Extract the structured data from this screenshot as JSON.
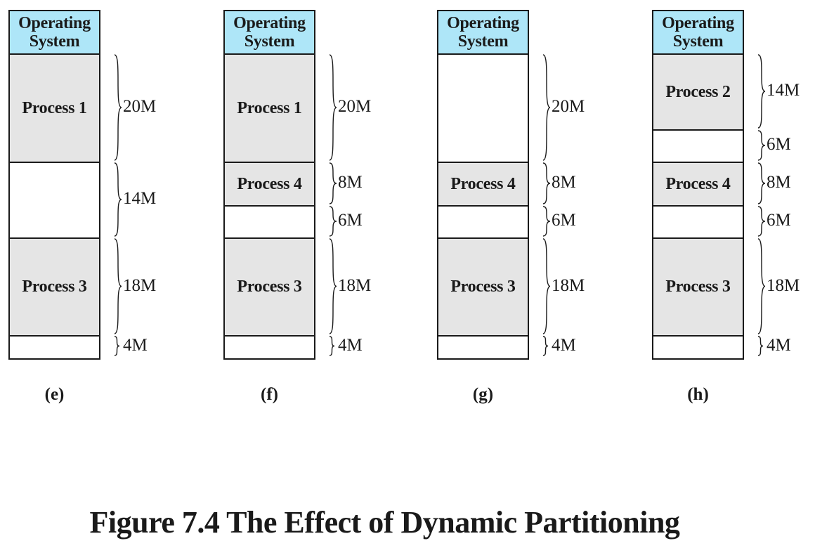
{
  "title": "Figure 7.4  The Effect of Dynamic Partitioning",
  "diagrams": [
    {
      "caption": "(e)",
      "os_label": "Operating System",
      "segments": [
        {
          "label": "Process 1",
          "kind": "process",
          "size": "20M"
        },
        {
          "label": "",
          "kind": "free",
          "size": "14M"
        },
        {
          "label": "Process 3",
          "kind": "process",
          "size": "18M"
        },
        {
          "label": "",
          "kind": "free",
          "size": "4M"
        }
      ]
    },
    {
      "caption": "(f)",
      "os_label": "Operating System",
      "segments": [
        {
          "label": "Process 1",
          "kind": "process",
          "size": "20M"
        },
        {
          "label": "Process 4",
          "kind": "process",
          "size": "8M"
        },
        {
          "label": "",
          "kind": "free",
          "size": "6M"
        },
        {
          "label": "Process 3",
          "kind": "process",
          "size": "18M"
        },
        {
          "label": "",
          "kind": "free",
          "size": "4M"
        }
      ]
    },
    {
      "caption": "(g)",
      "os_label": "Operating System",
      "segments": [
        {
          "label": "",
          "kind": "free",
          "size": "20M"
        },
        {
          "label": "Process 4",
          "kind": "process",
          "size": "8M"
        },
        {
          "label": "",
          "kind": "free",
          "size": "6M"
        },
        {
          "label": "Process 3",
          "kind": "process",
          "size": "18M"
        },
        {
          "label": "",
          "kind": "free",
          "size": "4M"
        }
      ]
    },
    {
      "caption": "(h)",
      "os_label": "Operating System",
      "segments": [
        {
          "label": "Process 2",
          "kind": "process",
          "size": "14M"
        },
        {
          "label": "",
          "kind": "free",
          "size": "6M"
        },
        {
          "label": "Process 4",
          "kind": "process",
          "size": "8M"
        },
        {
          "label": "",
          "kind": "free",
          "size": "6M"
        },
        {
          "label": "Process 3",
          "kind": "process",
          "size": "18M"
        },
        {
          "label": "",
          "kind": "free",
          "size": "4M"
        }
      ]
    }
  ],
  "colors": {
    "os": "#aee6f8",
    "process": "#e5e5e5",
    "free": "#ffffff",
    "line": "#1a1a1a"
  }
}
